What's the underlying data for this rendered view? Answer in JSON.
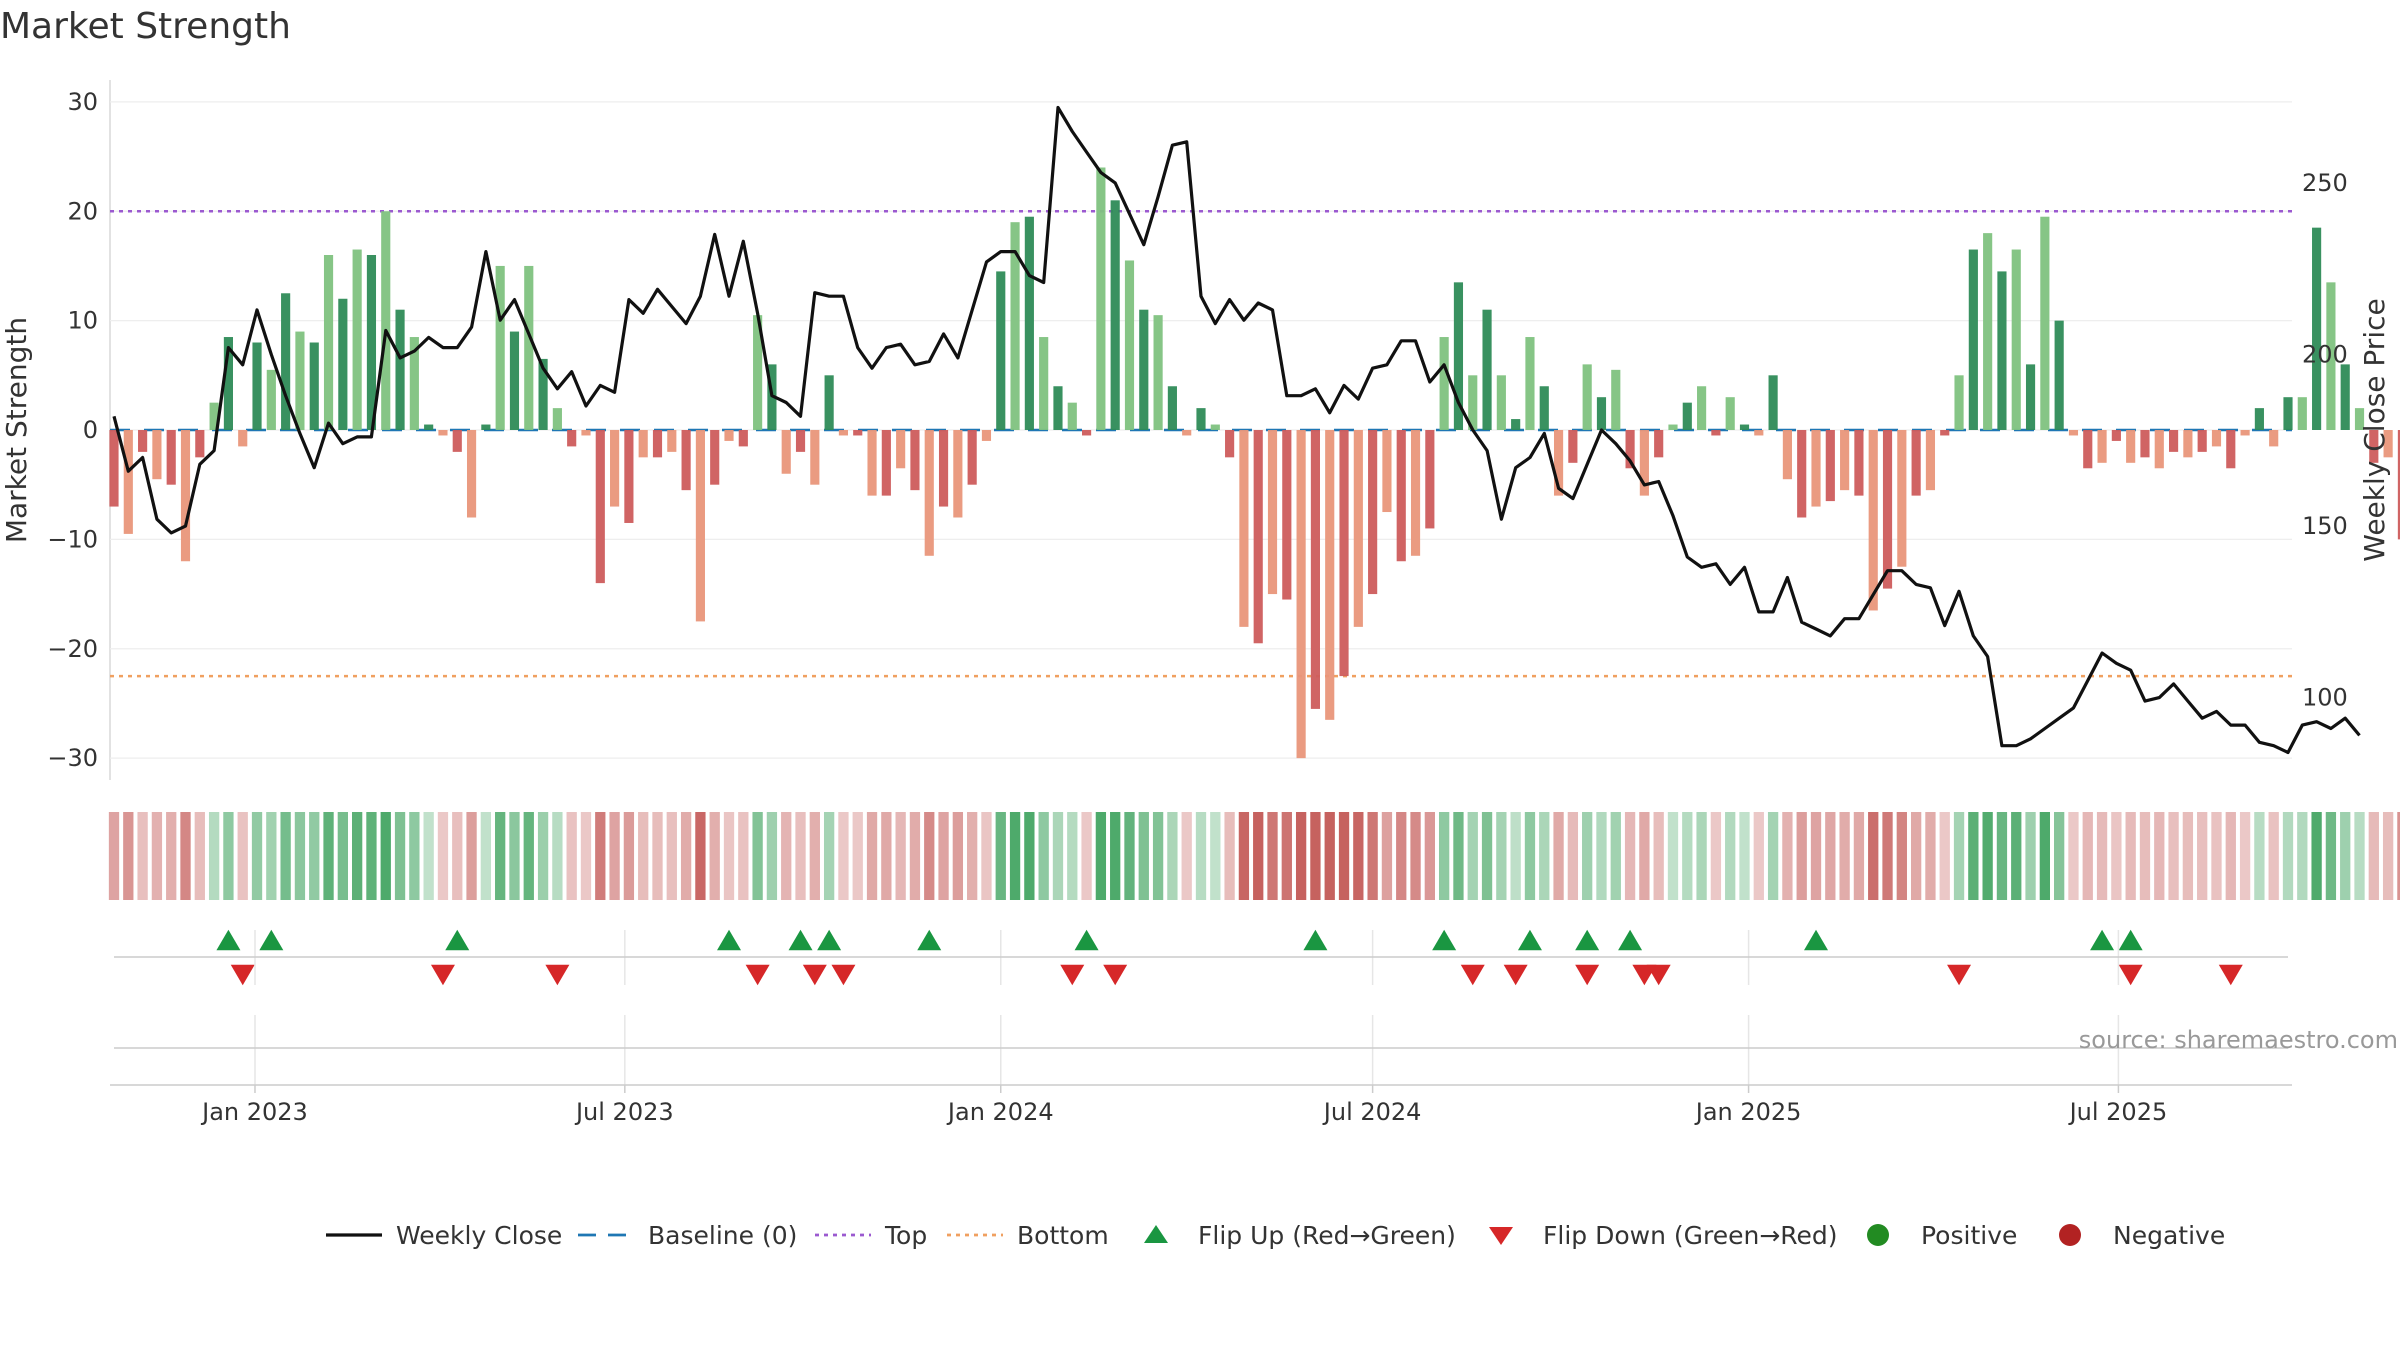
{
  "title": "Market Strength",
  "source": "source: sharemaestro.com",
  "colors": {
    "pos_dark": "#2e8b57",
    "pos_light": "#7fc27f",
    "neg_dark": "#cd5c5c",
    "neg_light": "#e9967a",
    "top": "#9b59d0",
    "bottom": "#f0a060",
    "baseline": "#1f77b4",
    "flip_up": "#1a9641",
    "flip_down": "#d62728",
    "positive": "#228b22",
    "negative": "#b22222",
    "close": "#111111"
  },
  "chart_data": {
    "type": "bar",
    "x_start": "2022-10-24",
    "x_end": "2025-09-22",
    "x_interval_days": 7,
    "left_axis": {
      "label": "Market Strength",
      "ylim": [
        -32,
        32
      ],
      "ticks": [
        30,
        20,
        10,
        0,
        -10,
        -20,
        -30
      ]
    },
    "right_axis": {
      "label": "Weekly Close Price",
      "ylim": [
        76,
        280
      ],
      "ticks": [
        250,
        200,
        150,
        100
      ]
    },
    "x_ticks": [
      "Jan 2023",
      "Jul 2023",
      "Jan 2024",
      "Jul 2024",
      "Jan 2025",
      "Jul 2025"
    ],
    "x_tick_dates": [
      "2023-01-01",
      "2023-07-01",
      "2024-01-01",
      "2024-07-01",
      "2025-01-01",
      "2025-07-01"
    ],
    "top_level": 20,
    "bottom_level": -22.5,
    "baseline": 0,
    "strength": [
      -7,
      -9.5,
      -2,
      -4.5,
      -5,
      -12,
      -2.5,
      2.5,
      8.5,
      -1.5,
      8,
      5.5,
      12.5,
      9,
      8,
      16,
      12,
      16.5,
      16,
      20,
      11,
      8.5,
      0.5,
      -0.5,
      -2,
      -8,
      0.5,
      15,
      9,
      15,
      6.5,
      2,
      -1.5,
      -0.5,
      -14,
      -7,
      -8.5,
      -2.5,
      -2.5,
      -2,
      -5.5,
      -17.5,
      -5,
      -1,
      -1.5,
      10.5,
      6,
      -4,
      -2,
      -5,
      5,
      -0.5,
      -0.5,
      -6,
      -6,
      -3.5,
      -5.5,
      -11.5,
      -7,
      -8,
      -5,
      -1,
      14.5,
      19,
      19.5,
      8.5,
      4,
      2.5,
      -0.5,
      24,
      21,
      15.5,
      11,
      10.5,
      4,
      -0.5,
      2,
      0.5,
      -2.5,
      -18,
      -19.5,
      -15,
      -15.5,
      -30,
      -25.5,
      -26.5,
      -22.5,
      -18,
      -15,
      -7.5,
      -12,
      -11.5,
      -9,
      8.5,
      13.5,
      5,
      11,
      5,
      1,
      8.5,
      4,
      -6,
      -3,
      6,
      3,
      5.5,
      -3.5,
      -6,
      -2.5,
      0.5,
      2.5,
      4,
      -0.5,
      3,
      0.5,
      -0.5,
      5,
      -4.5,
      -8,
      -7,
      -6.5,
      -5.5,
      -6,
      -16.5,
      -14.5,
      -12.5,
      -6,
      -5.5,
      -0.5,
      5,
      16.5,
      18,
      14.5,
      16.5,
      6,
      19.5,
      10,
      -0.5,
      -3.5,
      -3,
      -1,
      -3,
      -2.5,
      -3.5,
      -2,
      -2.5,
      -2,
      -1.5,
      -3.5,
      -0.5,
      2,
      -1.5,
      3,
      3,
      18.5,
      13.5,
      6,
      2,
      -3,
      -2.5,
      -10,
      -9,
      -4.5,
      -1
    ],
    "weekly_close": [
      [
        0,
        182
      ],
      [
        1,
        166
      ],
      [
        2,
        170
      ],
      [
        3,
        152
      ],
      [
        4,
        148
      ],
      [
        5,
        150
      ],
      [
        6,
        168
      ],
      [
        7,
        172
      ],
      [
        8,
        202
      ],
      [
        9,
        197
      ],
      [
        10,
        213
      ],
      [
        11,
        200
      ],
      [
        12,
        188
      ],
      [
        13,
        177
      ],
      [
        14,
        167
      ],
      [
        15,
        180
      ],
      [
        16,
        174
      ],
      [
        17,
        176
      ],
      [
        18,
        176
      ],
      [
        19,
        207
      ],
      [
        20,
        199
      ],
      [
        21,
        201
      ],
      [
        22,
        205
      ],
      [
        23,
        202
      ],
      [
        24,
        202
      ],
      [
        25,
        208
      ],
      [
        26,
        230
      ],
      [
        27,
        210
      ],
      [
        28,
        216
      ],
      [
        29,
        206
      ],
      [
        30,
        196
      ],
      [
        31,
        190
      ],
      [
        32,
        195
      ],
      [
        33,
        185
      ],
      [
        34,
        191
      ],
      [
        35,
        189
      ],
      [
        36,
        216
      ],
      [
        37,
        212
      ],
      [
        38,
        219
      ],
      [
        39,
        214
      ],
      [
        40,
        209
      ],
      [
        41,
        217
      ],
      [
        42,
        235
      ],
      [
        43,
        217
      ],
      [
        44,
        233
      ],
      [
        45,
        212
      ],
      [
        46,
        188
      ],
      [
        47,
        186
      ],
      [
        48,
        182
      ],
      [
        49,
        218
      ],
      [
        50,
        217
      ],
      [
        51,
        217
      ],
      [
        52,
        202
      ],
      [
        53,
        196
      ],
      [
        54,
        202
      ],
      [
        55,
        203
      ],
      [
        56,
        197
      ],
      [
        57,
        198
      ],
      [
        58,
        206
      ],
      [
        59,
        199
      ],
      [
        60,
        213
      ],
      [
        61,
        227
      ],
      [
        62,
        230
      ],
      [
        63,
        230
      ],
      [
        64,
        223
      ],
      [
        65,
        221
      ],
      [
        66,
        272
      ],
      [
        67,
        265
      ],
      [
        68,
        259
      ],
      [
        69,
        253
      ],
      [
        70,
        250
      ],
      [
        71,
        241
      ],
      [
        72,
        232
      ],
      [
        73,
        246
      ],
      [
        74,
        261
      ],
      [
        75,
        262
      ],
      [
        76,
        217
      ],
      [
        77,
        209
      ],
      [
        78,
        216
      ],
      [
        79,
        210
      ],
      [
        80,
        215
      ],
      [
        81,
        213
      ],
      [
        82,
        188
      ],
      [
        83,
        188
      ],
      [
        84,
        190
      ],
      [
        85,
        183
      ],
      [
        86,
        191
      ],
      [
        87,
        187
      ],
      [
        88,
        196
      ],
      [
        89,
        197
      ],
      [
        90,
        204
      ],
      [
        91,
        204
      ],
      [
        92,
        192
      ],
      [
        93,
        197
      ],
      [
        94,
        186
      ],
      [
        95,
        178
      ],
      [
        96,
        172
      ],
      [
        97,
        152
      ],
      [
        98,
        167
      ],
      [
        99,
        170
      ],
      [
        100,
        177
      ],
      [
        101,
        161
      ],
      [
        102,
        158
      ],
      [
        103,
        168
      ],
      [
        104,
        178
      ],
      [
        105,
        174
      ],
      [
        106,
        169
      ],
      [
        107,
        162
      ],
      [
        108,
        163
      ],
      [
        109,
        153
      ],
      [
        110,
        141
      ],
      [
        111,
        138
      ],
      [
        112,
        139
      ],
      [
        113,
        133
      ],
      [
        114,
        138
      ],
      [
        115,
        125
      ],
      [
        116,
        125
      ],
      [
        117,
        135
      ],
      [
        118,
        122
      ],
      [
        119,
        120
      ],
      [
        120,
        118
      ],
      [
        121,
        123
      ],
      [
        122,
        123
      ],
      [
        123,
        130
      ],
      [
        124,
        137
      ],
      [
        125,
        137
      ],
      [
        126,
        133
      ],
      [
        127,
        132
      ],
      [
        128,
        121
      ],
      [
        129,
        131
      ],
      [
        130,
        118
      ],
      [
        131,
        112
      ],
      [
        132,
        86
      ],
      [
        133,
        86
      ],
      [
        134,
        88
      ],
      [
        135,
        91
      ],
      [
        136,
        94
      ],
      [
        137,
        97
      ],
      [
        138,
        105
      ],
      [
        139,
        113
      ],
      [
        140,
        110
      ],
      [
        141,
        108
      ],
      [
        142,
        99
      ],
      [
        143,
        100
      ],
      [
        144,
        104
      ],
      [
        145,
        99
      ],
      [
        146,
        94
      ],
      [
        147,
        96
      ],
      [
        148,
        92
      ],
      [
        149,
        92
      ],
      [
        150,
        87
      ],
      [
        151,
        86
      ],
      [
        152,
        84
      ],
      [
        153,
        92
      ],
      [
        154,
        93
      ],
      [
        155,
        91
      ],
      [
        156,
        94
      ],
      [
        157,
        89
      ]
    ],
    "flip_up_dates": [
      "2022-12-19",
      "2023-01-09",
      "2023-04-10",
      "2023-08-21",
      "2023-09-25",
      "2023-10-09",
      "2023-11-27",
      "2024-02-12",
      "2024-06-03",
      "2024-08-05",
      "2024-09-16",
      "2024-10-14",
      "2024-11-04",
      "2025-02-03",
      "2025-06-23",
      "2025-07-07"
    ],
    "flip_down_dates": [
      "2022-12-26",
      "2023-04-03",
      "2023-05-29",
      "2023-09-04",
      "2023-10-02",
      "2023-10-16",
      "2024-02-05",
      "2024-02-26",
      "2024-08-19",
      "2024-09-09",
      "2024-10-14",
      "2024-11-11",
      "2024-11-18",
      "2025-04-14",
      "2025-07-07",
      "2025-08-25"
    ]
  },
  "legend": [
    {
      "label": "Weekly Close",
      "kind": "line"
    },
    {
      "label": "Baseline (0)",
      "kind": "dash"
    },
    {
      "label": "Top",
      "kind": "dot-top"
    },
    {
      "label": "Bottom",
      "kind": "dot-bottom"
    },
    {
      "label": "Flip Up (Red→Green)",
      "kind": "tri-up"
    },
    {
      "label": "Flip Down (Green→Red)",
      "kind": "tri-down"
    },
    {
      "label": "Positive",
      "kind": "circle-pos"
    },
    {
      "label": "Negative",
      "kind": "circle-neg"
    }
  ]
}
